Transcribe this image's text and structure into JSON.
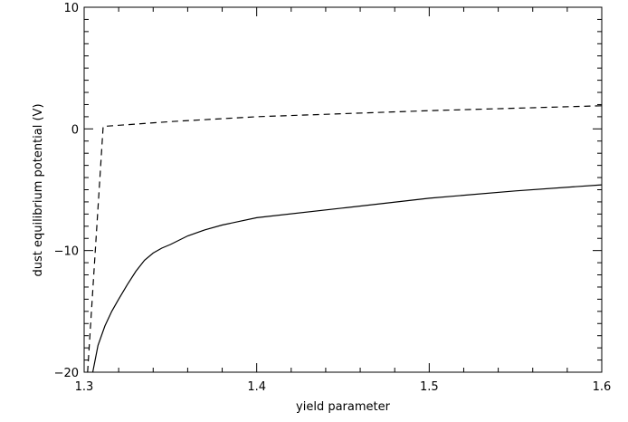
{
  "chart_data": {
    "type": "line",
    "title": "",
    "xlabel": "yield parameter",
    "ylabel": "dust equilibrium potential (V)",
    "xlim": [
      1.3,
      1.6
    ],
    "ylim": [
      -20,
      10
    ],
    "xticks": [
      1.3,
      1.4,
      1.5,
      1.6
    ],
    "xtick_labels": [
      "1.3",
      "1.4",
      "1.5",
      "1.6"
    ],
    "yticks": [
      -20,
      -10,
      0,
      10
    ],
    "ytick_labels": [
      "−20",
      "−10",
      "0",
      "10"
    ],
    "grid": false,
    "legend": "none",
    "series": [
      {
        "style": "solid",
        "color": "#000000",
        "x": [
          1.305,
          1.308,
          1.312,
          1.316,
          1.32,
          1.325,
          1.33,
          1.335,
          1.34,
          1.345,
          1.35,
          1.36,
          1.37,
          1.38,
          1.4,
          1.45,
          1.5,
          1.55,
          1.6
        ],
        "y": [
          -20,
          -17.8,
          -16.2,
          -15.0,
          -14.0,
          -12.8,
          -11.7,
          -10.8,
          -10.2,
          -9.8,
          -9.5,
          -8.8,
          -8.3,
          -7.9,
          -7.3,
          -6.5,
          -5.7,
          -5.1,
          -4.6
        ]
      },
      {
        "style": "dashed",
        "color": "#000000",
        "x": [
          1.302,
          1.311,
          1.35,
          1.4,
          1.5,
          1.6
        ],
        "y": [
          -20,
          0.2,
          0.6,
          1.0,
          1.5,
          1.9
        ]
      }
    ]
  }
}
